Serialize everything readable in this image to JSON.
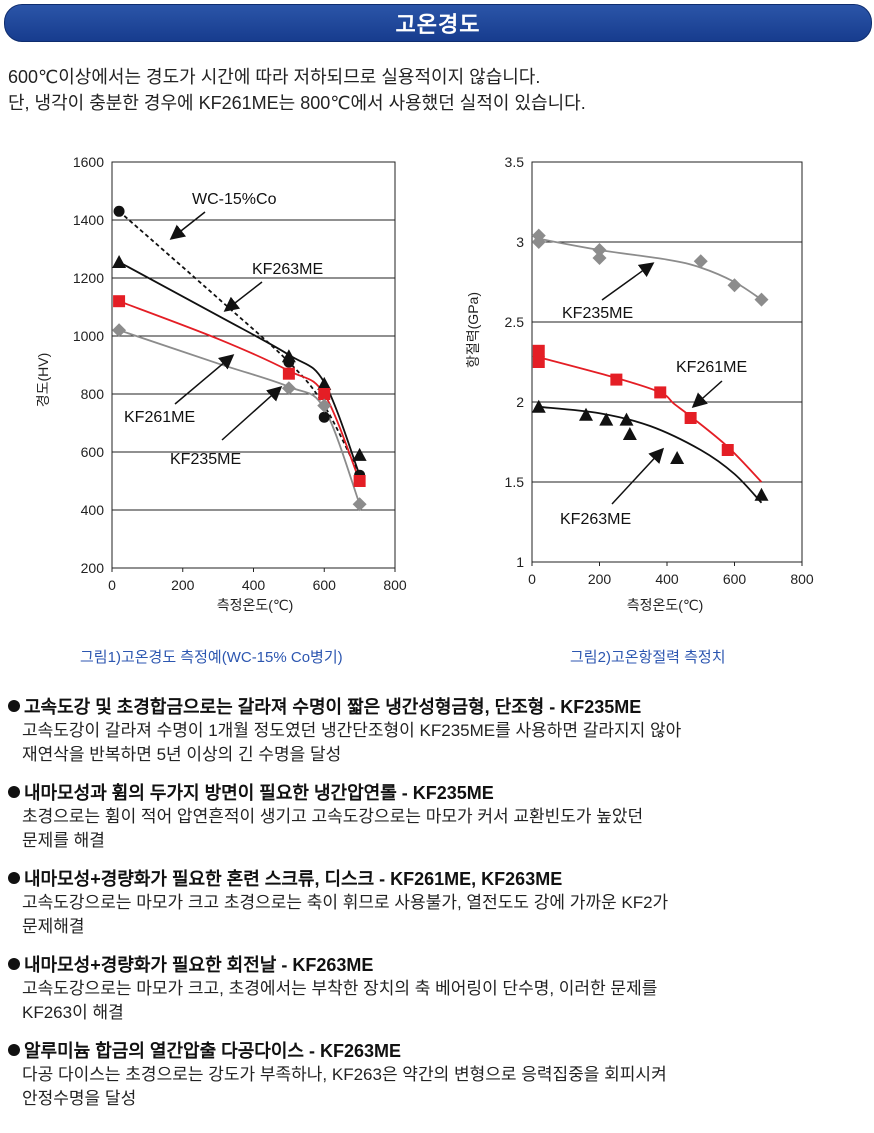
{
  "header": {
    "title": "고온경도"
  },
  "intro": {
    "line1": "600℃이상에서는 경도가 시간에 따라 저하되므로 실용적이지 않습니다.",
    "line2": "단, 냉각이 충분한 경우에 KF261ME는 800℃에서 사용했던 실적이 있습니다."
  },
  "chart_data": [
    {
      "type": "line",
      "xlabel": "측정온도(℃)",
      "ylabel": "경도(HV)",
      "xlim": [
        0,
        800
      ],
      "ylim": [
        200,
        1600
      ],
      "xticks": [
        0,
        200,
        400,
        600,
        800
      ],
      "yticks": [
        200,
        400,
        600,
        800,
        1000,
        1200,
        1400,
        1600
      ],
      "grid": true,
      "caption": "그림1)고온경도 측정예(WC-15% Co병기)",
      "series": [
        {
          "name": "WC-15%Co",
          "marker": "circle",
          "color": "#111111",
          "dashed": true,
          "points": [
            [
              20,
              1430
            ],
            [
              500,
              910
            ],
            [
              600,
              720
            ],
            [
              700,
              520
            ]
          ],
          "curve": [
            [
              20,
              1430
            ],
            [
              300,
              1130
            ],
            [
              500,
              910
            ],
            [
              600,
              760
            ],
            [
              700,
              520
            ]
          ]
        },
        {
          "name": "KF263ME",
          "marker": "triangle",
          "color": "#111111",
          "dashed": false,
          "points": [
            [
              20,
              1255
            ],
            [
              500,
              930
            ],
            [
              600,
              835
            ],
            [
              700,
              590
            ]
          ],
          "curve": [
            [
              20,
              1255
            ],
            [
              300,
              1070
            ],
            [
              500,
              935
            ],
            [
              600,
              840
            ],
            [
              700,
              520
            ]
          ]
        },
        {
          "name": "KF261ME",
          "marker": "square",
          "color": "#e41e25",
          "dashed": false,
          "points": [
            [
              20,
              1120
            ],
            [
              500,
              870
            ],
            [
              600,
              800
            ],
            [
              700,
              500
            ]
          ],
          "curve": [
            [
              20,
              1120
            ],
            [
              300,
              990
            ],
            [
              500,
              880
            ],
            [
              600,
              800
            ],
            [
              700,
              500
            ]
          ]
        },
        {
          "name": "KF235ME",
          "marker": "diamond",
          "color": "#8c8c8c",
          "dashed": false,
          "points": [
            [
              20,
              1020
            ],
            [
              500,
              820
            ],
            [
              600,
              760
            ],
            [
              700,
              420
            ]
          ],
          "curve": [
            [
              20,
              1020
            ],
            [
              300,
              905
            ],
            [
              500,
              825
            ],
            [
              600,
              750
            ],
            [
              700,
              420
            ]
          ]
        }
      ]
    },
    {
      "type": "scatter",
      "xlabel": "측정온도(℃)",
      "ylabel": "항절력(GPa)",
      "xlim": [
        0,
        800
      ],
      "ylim": [
        1,
        3.5
      ],
      "xticks": [
        0,
        200,
        400,
        600,
        800
      ],
      "yticks": [
        1,
        1.5,
        2,
        2.5,
        3,
        3.5
      ],
      "grid": true,
      "caption": "그림2)고온항절력 측정치",
      "series": [
        {
          "name": "KF235ME",
          "marker": "diamond",
          "color": "#8c8c8c",
          "points": [
            [
              20,
              3.04
            ],
            [
              20,
              3.0
            ],
            [
              200,
              2.95
            ],
            [
              200,
              2.9
            ],
            [
              500,
              2.88
            ],
            [
              600,
              2.73
            ],
            [
              680,
              2.64
            ]
          ],
          "curve": [
            [
              20,
              3.02
            ],
            [
              200,
              2.95
            ],
            [
              400,
              2.89
            ],
            [
              500,
              2.84
            ],
            [
              600,
              2.75
            ],
            [
              680,
              2.64
            ]
          ]
        },
        {
          "name": "KF261ME",
          "marker": "square",
          "color": "#e41e25",
          "points": [
            [
              20,
              2.32
            ],
            [
              20,
              2.25
            ],
            [
              250,
              2.14
            ],
            [
              380,
              2.06
            ],
            [
              470,
              1.9
            ],
            [
              580,
              1.7
            ]
          ],
          "curve": [
            [
              20,
              2.28
            ],
            [
              250,
              2.15
            ],
            [
              380,
              2.06
            ],
            [
              420,
              1.99
            ],
            [
              470,
              1.91
            ],
            [
              580,
              1.72
            ],
            [
              680,
              1.5
            ]
          ]
        },
        {
          "name": "KF263ME",
          "marker": "triangle",
          "color": "#111111",
          "points": [
            [
              20,
              1.97
            ],
            [
              160,
              1.92
            ],
            [
              220,
              1.89
            ],
            [
              280,
              1.89
            ],
            [
              290,
              1.8
            ],
            [
              430,
              1.65
            ],
            [
              680,
              1.42
            ]
          ],
          "curve": [
            [
              20,
              1.97
            ],
            [
              200,
              1.93
            ],
            [
              350,
              1.85
            ],
            [
              500,
              1.7
            ],
            [
              600,
              1.55
            ],
            [
              680,
              1.37
            ]
          ]
        }
      ]
    }
  ],
  "chart1_labels": {
    "tick_x": [
      "0",
      "200",
      "400",
      "600",
      "800"
    ],
    "tick_y": [
      "200",
      "400",
      "600",
      "800",
      "1000",
      "1200",
      "1400",
      "1600"
    ],
    "wc": "WC-15%Co",
    "kf263": "KF263ME",
    "kf261": "KF261ME",
    "kf235": "KF235ME"
  },
  "chart2_labels": {
    "tick_x": [
      "0",
      "200",
      "400",
      "600",
      "800"
    ],
    "tick_y": [
      "1",
      "1.5",
      "2",
      "2.5",
      "3",
      "3.5"
    ],
    "kf235": "KF235ME",
    "kf261": "KF261ME",
    "kf263": "KF263ME"
  },
  "bullets": [
    {
      "head": "고속도강 및 초경합금으로는 갈라져 수명이 짧은 냉간성형금형, 단조형 - KF235ME",
      "lines": [
        "고속도강이 갈라져 수명이 1개월 정도였던 냉간단조형이 KF235ME를 사용하면 갈라지지 않아",
        "재연삭을 반복하면 5년 이상의 긴 수명을 달성"
      ]
    },
    {
      "head": "내마모성과 휨의 두가지 방면이 필요한 냉간압연롤 - KF235ME",
      "lines": [
        "초경으로는 휨이 적어 압연흔적이 생기고 고속도강으로는 마모가 커서 교환빈도가 높았던",
        "문제를 해결"
      ]
    },
    {
      "head": "내마모성+경량화가 필요한 혼련 스크류, 디스크 - KF261ME, KF263ME",
      "lines": [
        "고속도강으로는 마모가 크고 초경으로는 축이 휘므로 사용불가, 열전도도 강에 가까운 KF2가",
        "문제해결"
      ]
    },
    {
      "head": "내마모성+경량화가 필요한 회전날 - KF263ME",
      "lines": [
        "고속도강으로는 마모가 크고, 초경에서는 부착한 장치의 축 베어링이 단수명, 이러한 문제를",
        "KF263이 해결"
      ]
    },
    {
      "head": "알루미늄 합금의 열간압출 다공다이스 - KF263ME",
      "lines": [
        "다공 다이스는 초경으로는 강도가 부족하나, KF263은 약간의 변형으로 응력집중을 회피시켜",
        "안정수명을 달성"
      ]
    }
  ]
}
